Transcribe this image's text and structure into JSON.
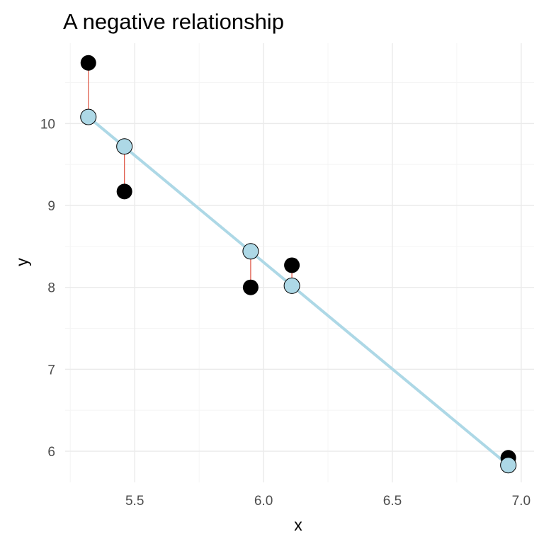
{
  "chart_data": {
    "type": "scatter",
    "title": "A negative relationship",
    "xlabel": "x",
    "ylabel": "y",
    "xlim": [
      5.23,
      7.05
    ],
    "ylim": [
      5.62,
      10.98
    ],
    "x_ticks": [
      5.5,
      6.0,
      6.5,
      7.0
    ],
    "x_tick_labels": [
      "5.5",
      "6.0",
      "6.5",
      "7.0"
    ],
    "y_ticks": [
      6,
      7,
      8,
      9,
      10
    ],
    "y_tick_labels": [
      "6",
      "7",
      "8",
      "9",
      "10"
    ],
    "grid": true,
    "legend": "none",
    "fit_line": {
      "x": [
        5.32,
        6.95
      ],
      "y": [
        10.08,
        5.83
      ]
    },
    "points": [
      {
        "x": 5.32,
        "observed": 10.74,
        "fitted": 10.08
      },
      {
        "x": 5.46,
        "observed": 9.17,
        "fitted": 9.72
      },
      {
        "x": 5.95,
        "observed": 8.0,
        "fitted": 8.44
      },
      {
        "x": 6.11,
        "observed": 8.27,
        "fitted": 8.02
      },
      {
        "x": 6.95,
        "observed": 5.92,
        "fitted": 5.83
      }
    ],
    "colors": {
      "observed": "#000000",
      "fitted": "#add8e6",
      "fit_line": "#add8e6",
      "residual": "#e06050",
      "grid_major": "#ebebeb",
      "grid_minor": "#f5f5f5"
    }
  }
}
